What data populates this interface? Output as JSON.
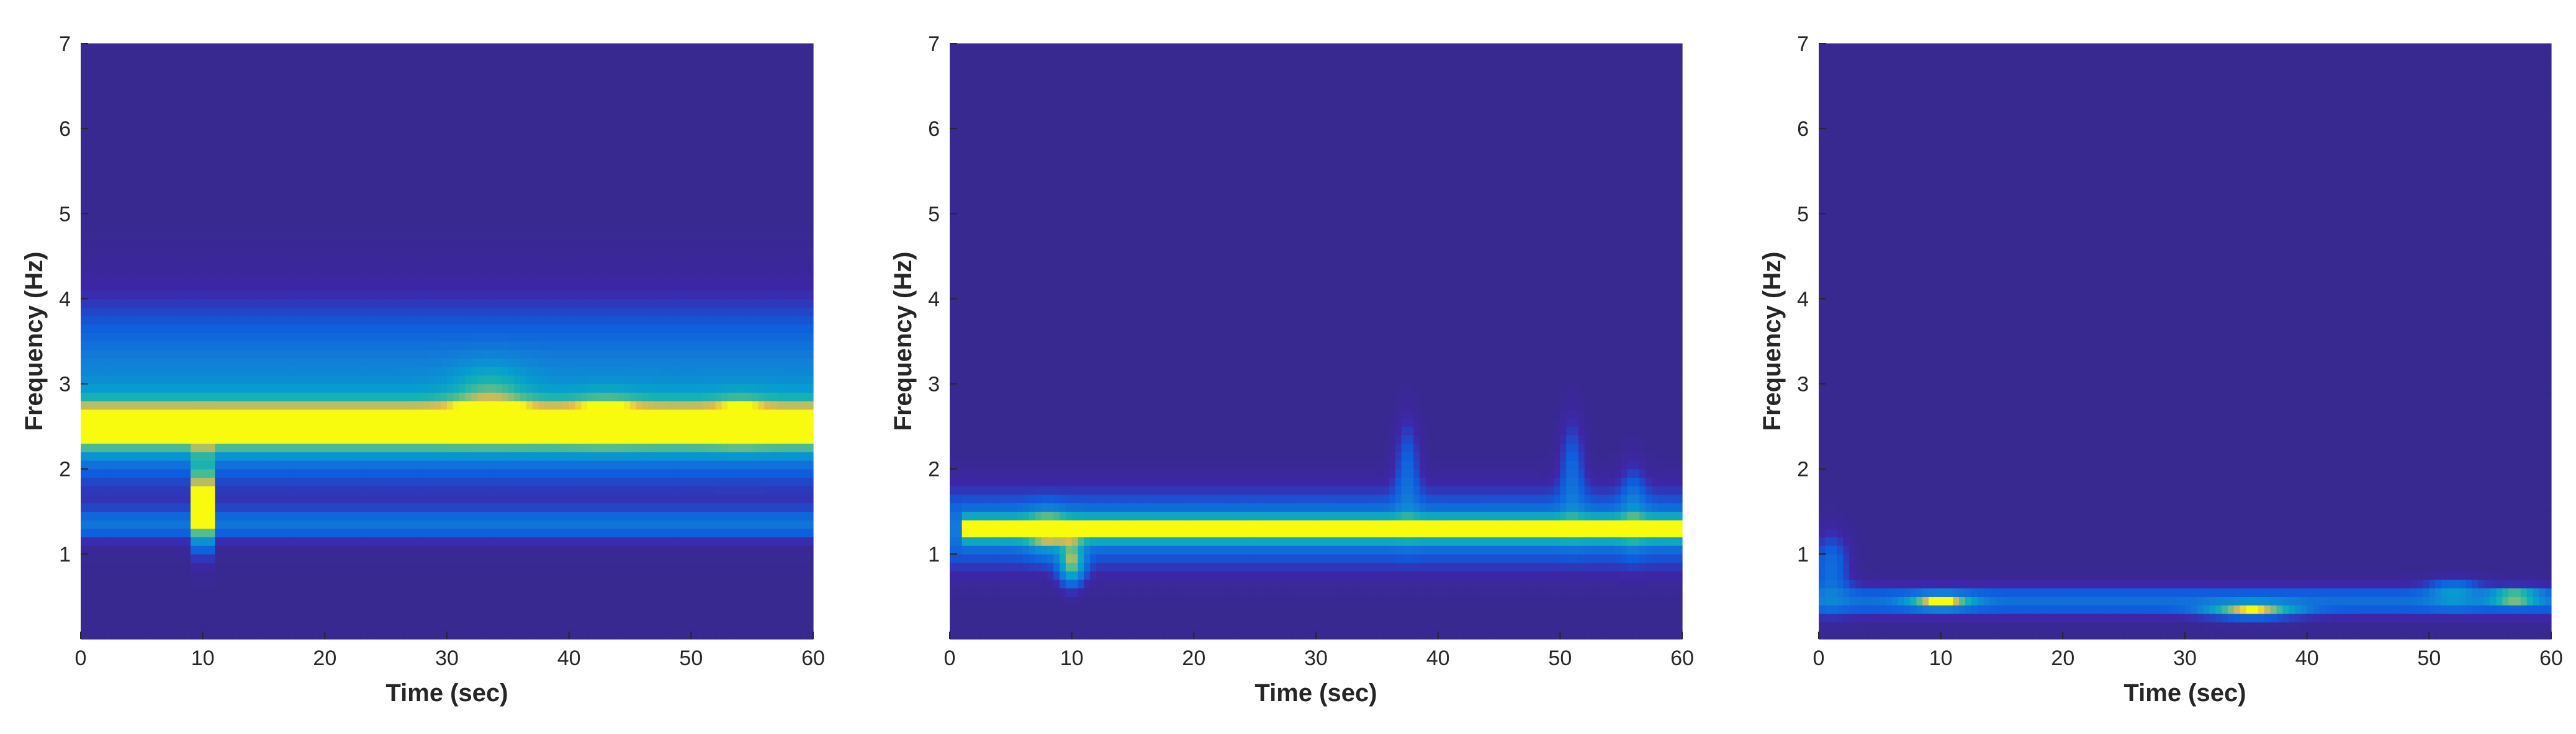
{
  "chart_data": [
    {
      "type": "heatmap",
      "xlabel": "Time (sec)",
      "ylabel": "Frequency (Hz)",
      "xlim": [
        0,
        60
      ],
      "ylim": [
        0,
        7
      ],
      "xticks": [
        0,
        10,
        20,
        30,
        40,
        50,
        60
      ],
      "yticks": [
        1,
        2,
        3,
        4,
        5,
        6,
        7
      ],
      "colormap": "parula",
      "background_level": 0.03,
      "bands": [
        {
          "t": [
            0,
            60
          ],
          "f": 2.5,
          "width": 0.28,
          "amp": 0.95
        },
        {
          "t": [
            0,
            60
          ],
          "f": 2.85,
          "width": 1.0,
          "amp": 0.45
        },
        {
          "t": [
            0,
            60
          ],
          "f": 1.35,
          "width": 0.18,
          "amp": 0.28
        },
        {
          "t": [
            9,
            11
          ],
          "f": 1.6,
          "width": 0.45,
          "amp": 0.95
        }
      ],
      "blobs": [
        {
          "t": 33.5,
          "f": 2.9,
          "dt": 3.0,
          "df": 0.35,
          "amp": 0.25
        },
        {
          "t": 43,
          "f": 2.65,
          "dt": 2.5,
          "df": 0.3,
          "amp": 0.15
        },
        {
          "t": 54,
          "f": 2.6,
          "dt": 2.0,
          "df": 0.3,
          "amp": 0.15
        }
      ]
    },
    {
      "type": "heatmap",
      "xlabel": "Time (sec)",
      "ylabel": "Frequency (Hz)",
      "xlim": [
        0,
        60
      ],
      "ylim": [
        0,
        7
      ],
      "xticks": [
        0,
        10,
        20,
        30,
        40,
        50,
        60
      ],
      "yticks": [
        1,
        2,
        3,
        4,
        5,
        6,
        7
      ],
      "colormap": "parula",
      "background_level": 0.03,
      "bands": [
        {
          "t": [
            1,
            60
          ],
          "f": 1.3,
          "width": 0.14,
          "amp": 0.85
        },
        {
          "t": [
            0,
            60
          ],
          "f": 1.3,
          "width": 0.45,
          "amp": 0.35
        }
      ],
      "blobs": [
        {
          "t": 8,
          "f": 1.25,
          "dt": 1.5,
          "df": 0.25,
          "amp": 0.35
        },
        {
          "t": 10,
          "f": 0.9,
          "dt": 1.0,
          "df": 0.25,
          "amp": 0.7
        },
        {
          "t": 37.5,
          "f": 2.0,
          "dt": 1.0,
          "df": 0.6,
          "amp": 0.25
        },
        {
          "t": 51,
          "f": 2.0,
          "dt": 1.0,
          "df": 0.6,
          "amp": 0.25
        },
        {
          "t": 56,
          "f": 1.6,
          "dt": 1.0,
          "df": 0.5,
          "amp": 0.2
        }
      ]
    },
    {
      "type": "heatmap",
      "xlabel": "Time (sec)",
      "ylabel": "Frequency (Hz)",
      "xlim": [
        0,
        60
      ],
      "ylim": [
        0,
        7
      ],
      "xticks": [
        0,
        10,
        20,
        30,
        40,
        50,
        60
      ],
      "yticks": [
        1,
        2,
        3,
        4,
        5,
        6,
        7
      ],
      "colormap": "parula",
      "background_level": 0.03,
      "bands": [
        {
          "t": [
            0,
            60
          ],
          "f": 0.45,
          "width": 0.18,
          "amp": 0.3
        }
      ],
      "blobs": [
        {
          "t": 1,
          "f": 0.85,
          "dt": 1.5,
          "df": 0.4,
          "amp": 0.3
        },
        {
          "t": 10,
          "f": 0.45,
          "dt": 2.5,
          "df": 0.08,
          "amp": 0.75
        },
        {
          "t": 35.5,
          "f": 0.35,
          "dt": 3.5,
          "df": 0.08,
          "amp": 0.75
        },
        {
          "t": 57,
          "f": 0.5,
          "dt": 2.0,
          "df": 0.08,
          "amp": 0.75
        },
        {
          "t": 52,
          "f": 0.55,
          "dt": 2.0,
          "df": 0.15,
          "amp": 0.3
        }
      ]
    }
  ]
}
